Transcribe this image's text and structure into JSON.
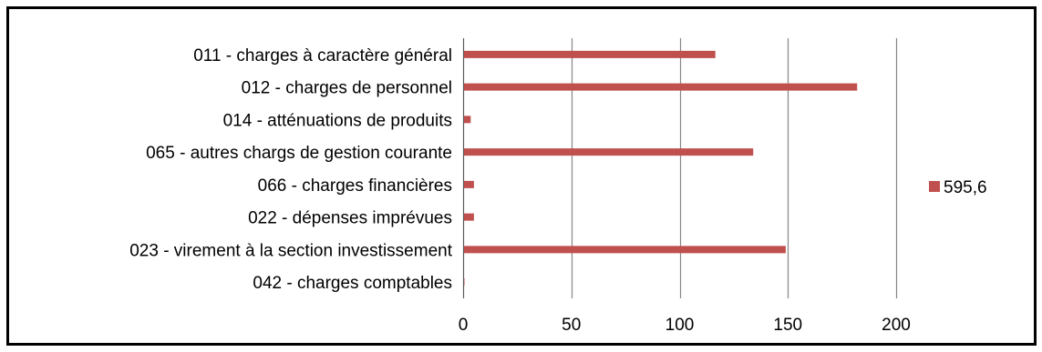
{
  "chart_data": {
    "type": "bar",
    "orientation": "horizontal",
    "categories": [
      "011 - charges à caractère général",
      "012 - charges de personnel",
      "014 - atténuations de produits",
      "065 - autres chargs de gestion courante",
      "066 - charges financières",
      "022 - dépenses imprévues",
      "023 - virement à la section investissement",
      "042 - charges comptables"
    ],
    "series": [
      {
        "name": "595,6",
        "values": [
          116.5,
          182,
          3.5,
          134,
          5,
          5,
          149,
          0.5
        ]
      }
    ],
    "xlim": [
      0,
      250
    ],
    "xticks": [
      0,
      50,
      100,
      150,
      200
    ],
    "tick_labels": [
      "0",
      "50",
      "100",
      "150",
      "200"
    ],
    "grid": true,
    "legend_position": "right",
    "colors": {
      "bar": "#C0504D",
      "grid": "#868686",
      "frame": "#000000"
    }
  }
}
